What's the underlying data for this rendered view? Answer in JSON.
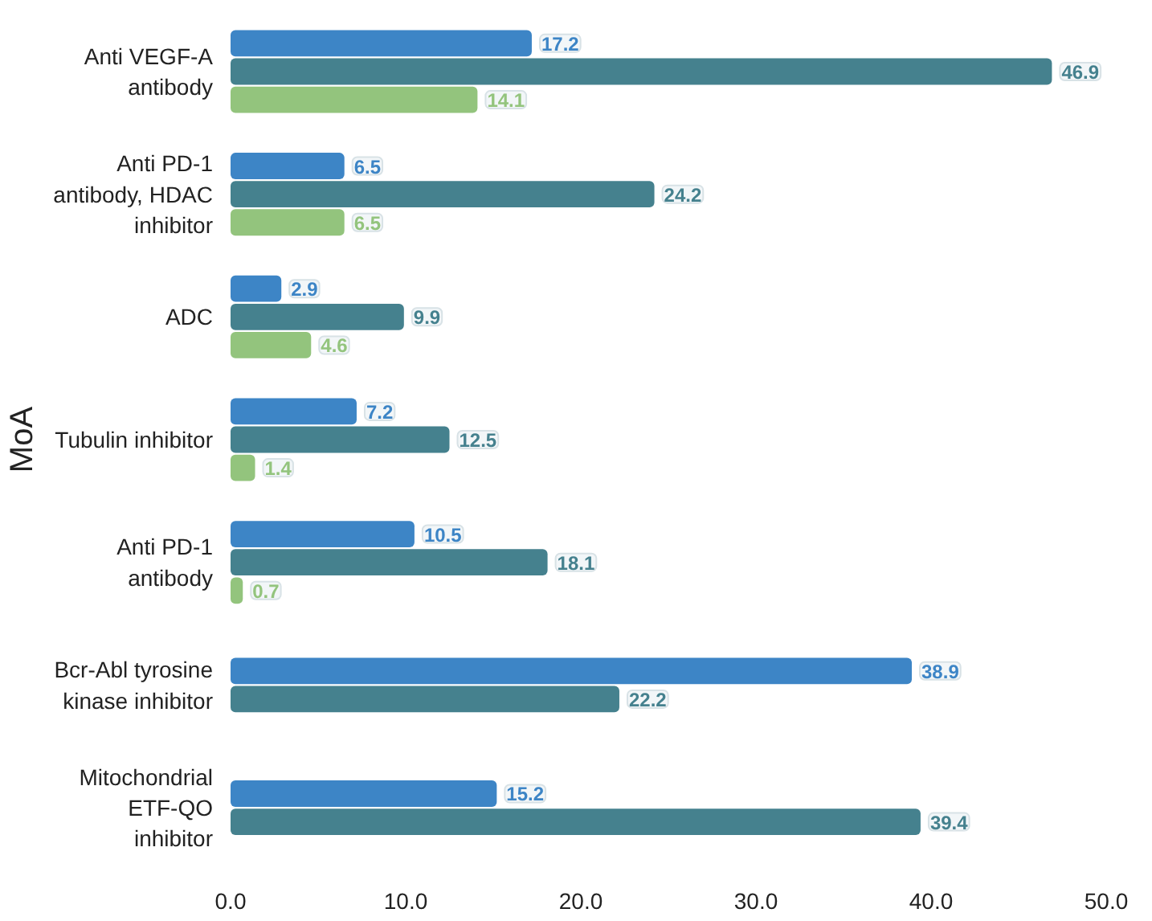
{
  "chart_data": {
    "type": "bar",
    "orientation": "horizontal",
    "ylabel": "MoA",
    "categories": [
      "Anti VEGF-A\nantibody",
      "Anti PD-1\nantibody, HDAC\ninhibitor",
      "ADC",
      "Tubulin inhibitor",
      "Anti PD-1\nantibody",
      "Bcr-Abl tyrosine\nkinase inhibitor",
      "Mitochondrial\nETF-QO\ninhibitor"
    ],
    "series": [
      {
        "color": "#3d85c6",
        "values": [
          17.2,
          6.5,
          2.9,
          7.2,
          10.5,
          38.9,
          15.2
        ]
      },
      {
        "color": "#45818e",
        "values": [
          46.9,
          24.2,
          9.9,
          12.5,
          18.1,
          22.2,
          39.4
        ]
      },
      {
        "color": "#93c47d",
        "values": [
          14.1,
          6.5,
          4.6,
          1.4,
          0.7,
          null,
          null
        ]
      }
    ],
    "xlim": [
      0,
      50
    ],
    "xticks": [
      {
        "value": 0,
        "label": "0.0"
      },
      {
        "value": 10,
        "label": "10.0"
      },
      {
        "value": 20,
        "label": "20.0"
      },
      {
        "value": 30,
        "label": "30.0"
      },
      {
        "value": 40,
        "label": "40.0"
      },
      {
        "value": 50,
        "label": "50.0"
      }
    ],
    "data_labels": true,
    "grid": false
  }
}
